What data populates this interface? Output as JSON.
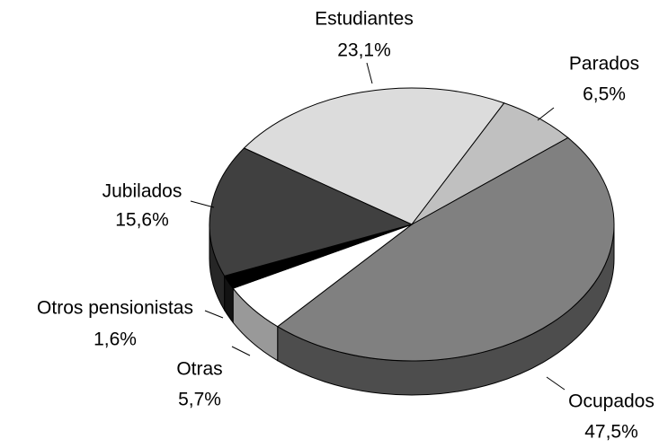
{
  "chart_data": {
    "type": "pie",
    "categories": [
      "Estudiantes",
      "Parados",
      "Ocupados",
      "Otras",
      "Otros pensionistas",
      "Jubilados"
    ],
    "values": [
      23.1,
      6.5,
      47.5,
      5.7,
      1.6,
      15.6
    ],
    "value_labels": [
      "23,1%",
      "6,5%",
      "47,5%",
      "5,7%",
      "1,6%",
      "15,6%"
    ],
    "colors": [
      "#dcdcdc",
      "#c0c0c0",
      "#808080",
      "#ffffff",
      "#000000",
      "#404040"
    ]
  }
}
